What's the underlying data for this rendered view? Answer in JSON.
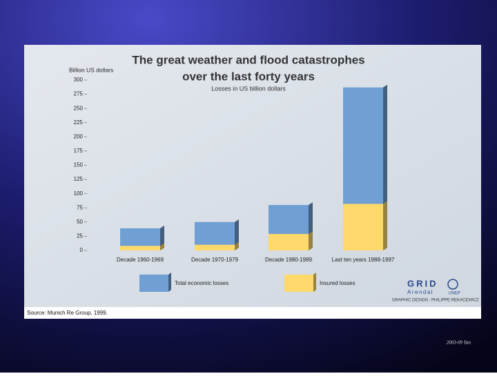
{
  "chart_data": {
    "type": "bar",
    "title": [
      "The great weather and flood catastrophes",
      "over the last forty years"
    ],
    "subtitle": "Losses in US billion dollars",
    "y_label": "Billion US dollars",
    "categories": [
      "Decade 1960-1969",
      "Decade 1970-1979",
      "Decade 1980-1989",
      "Last ten years 1988-1997"
    ],
    "series": [
      {
        "name": "Total economic losses",
        "color": "#6f9fd3",
        "values": [
          39,
          50,
          80,
          287
        ]
      },
      {
        "name": "Insured losses",
        "color": "#fdd86a",
        "values": [
          8,
          10,
          29,
          82
        ]
      }
    ],
    "overlap": true,
    "ylim": [
      0,
      300
    ],
    "yticks": [
      0,
      25,
      50,
      75,
      100,
      125,
      150,
      175,
      200,
      225,
      250,
      275,
      300
    ]
  },
  "source": "Source: Munich Re Group, 1999.",
  "logo": {
    "name": "GRID",
    "place": "Arendal",
    "org": "UNEP"
  },
  "credits": "GRAPHIC DESIGN : PHILIPPE REKACEWICZ",
  "footer": "2003-09 Yan"
}
